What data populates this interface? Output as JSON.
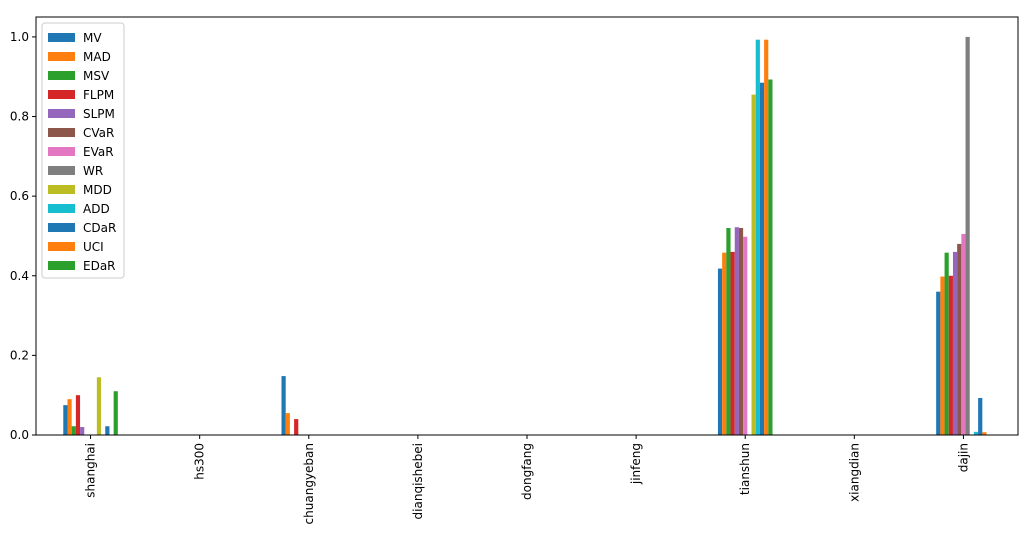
{
  "chart_data": {
    "type": "bar",
    "title": "",
    "xlabel": "",
    "ylabel": "",
    "ylim": [
      0,
      1.05
    ],
    "yticks": [
      "0.0",
      "0.2",
      "0.4",
      "0.6",
      "0.8",
      "1.0"
    ],
    "categories": [
      "shanghai",
      "hs300",
      "chuangyeban",
      "dianqishebei",
      "dongfang",
      "jinfeng",
      "tianshun",
      "xiangdian",
      "dajin"
    ],
    "legend_position": "top-left",
    "series": [
      {
        "name": "MV",
        "color": "#1f77b4",
        "values": [
          0.075,
          0,
          0.148,
          0,
          0,
          0,
          0.418,
          0,
          0.36
        ]
      },
      {
        "name": "MAD",
        "color": "#ff7f0e",
        "values": [
          0.09,
          0,
          0.055,
          0,
          0,
          0,
          0.458,
          0,
          0.398
        ]
      },
      {
        "name": "MSV",
        "color": "#2ca02c",
        "values": [
          0.022,
          0,
          0,
          0,
          0,
          0,
          0.52,
          0,
          0.458
        ]
      },
      {
        "name": "FLPM",
        "color": "#d62728",
        "values": [
          0.1,
          0,
          0.04,
          0,
          0,
          0,
          0.46,
          0,
          0.4
        ]
      },
      {
        "name": "SLPM",
        "color": "#9467bd",
        "values": [
          0.02,
          0,
          0,
          0,
          0,
          0,
          0.522,
          0,
          0.46
        ]
      },
      {
        "name": "CVaR",
        "color": "#8c564b",
        "values": [
          0,
          0,
          0,
          0,
          0,
          0,
          0.52,
          0,
          0.48
        ]
      },
      {
        "name": "EVaR",
        "color": "#e377c2",
        "values": [
          0,
          0,
          0,
          0,
          0,
          0,
          0.498,
          0,
          0.505
        ]
      },
      {
        "name": "WR",
        "color": "#7f7f7f",
        "values": [
          0,
          0,
          0,
          0,
          0,
          0,
          0,
          0,
          1.0
        ]
      },
      {
        "name": "MDD",
        "color": "#bcbd22",
        "values": [
          0.145,
          0,
          0,
          0,
          0,
          0,
          0.855,
          0,
          0
        ]
      },
      {
        "name": "ADD",
        "color": "#17becf",
        "values": [
          0,
          0,
          0,
          0,
          0,
          0,
          0.993,
          0,
          0.008
        ]
      },
      {
        "name": "CDaR",
        "color": "#1f77b4",
        "values": [
          0.022,
          0,
          0,
          0,
          0,
          0,
          0.885,
          0,
          0.093
        ]
      },
      {
        "name": "UCI",
        "color": "#ff7f0e",
        "values": [
          0,
          0,
          0,
          0,
          0,
          0,
          0.993,
          0,
          0.007
        ]
      },
      {
        "name": "EDaR",
        "color": "#2ca02c",
        "values": [
          0.11,
          0,
          0,
          0,
          0,
          0,
          0.893,
          0,
          0
        ]
      }
    ]
  }
}
